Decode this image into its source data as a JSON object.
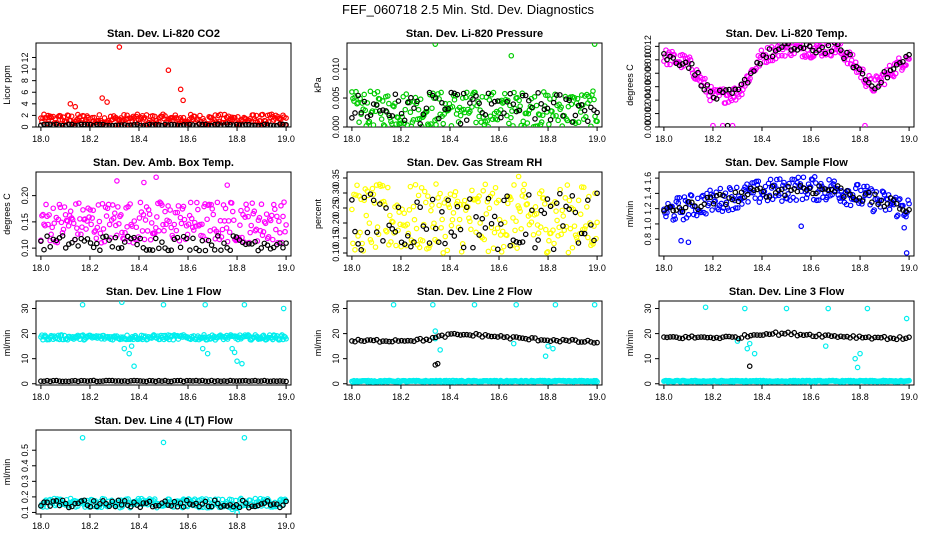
{
  "title": "FEF_060718  2.5 Min. Std. Dev. Diagnostics",
  "chart_data": [
    {
      "type": "scatter",
      "title": "Stan. Dev. Li-820 CO2",
      "ylabel": "Licor ppm",
      "xlim": [
        17.98,
        19.02
      ],
      "ylim": [
        0,
        14.5
      ],
      "xticks": [
        18.0,
        18.2,
        18.4,
        18.6,
        18.8,
        19.0
      ],
      "yticks": [
        0,
        2,
        4,
        6,
        8,
        10,
        12
      ],
      "series": [
        {
          "color": "#ff0000",
          "band": [
            0.3,
            2.2
          ],
          "outliers": [
            [
              18.32,
              13.8
            ],
            [
              18.52,
              9.8
            ],
            [
              18.25,
              5.0
            ],
            [
              18.57,
              6.5
            ],
            [
              18.14,
              3.5
            ],
            [
              18.58,
              4.6
            ],
            [
              18.12,
              4.0
            ],
            [
              18.27,
              4.3
            ]
          ]
        },
        {
          "color": "#000000",
          "band": [
            0.2,
            0.5
          ],
          "outliers": []
        }
      ]
    },
    {
      "type": "scatter",
      "title": "Stan. Dev. Li-820 Pressure",
      "ylabel": "kPa",
      "xlim": [
        17.98,
        19.02
      ],
      "ylim": [
        0,
        0.0145
      ],
      "xticks": [
        18.0,
        18.2,
        18.4,
        18.6,
        18.8,
        19.0
      ],
      "yticks": [
        0,
        0.005,
        0.01
      ],
      "ytick_labels": [
        "0.000",
        "0.005",
        "0.010"
      ],
      "series": [
        {
          "color": "#00cc00",
          "band": [
            0.0,
            0.0062
          ],
          "outliers": [
            [
              18.34,
              0.0143
            ],
            [
              18.65,
              0.0123
            ],
            [
              18.99,
              0.0143
            ]
          ]
        },
        {
          "color": "#000000",
          "band": [
            0.0005,
            0.006
          ],
          "outliers": []
        }
      ]
    },
    {
      "type": "scatter",
      "title": "Stan. Dev. Li-820 Temp.",
      "ylabel": "degrees C",
      "xlim": [
        17.98,
        19.02
      ],
      "ylim": [
        0,
        0.0125
      ],
      "xticks": [
        18.0,
        18.2,
        18.4,
        18.6,
        18.8,
        19.0
      ],
      "yticks": [
        0,
        0.002,
        0.004,
        0.006,
        0.008,
        0.01,
        0.012
      ],
      "ytick_labels": [
        "0.000",
        "0.002",
        "0.004",
        "0.006",
        "0.008",
        "0.010",
        "0.012"
      ],
      "series": [
        {
          "color": "#ff00ff",
          "curve": [
            [
              18.0,
              0.0105
            ],
            [
              18.1,
              0.0095
            ],
            [
              18.2,
              0.0045
            ],
            [
              18.3,
              0.005
            ],
            [
              18.4,
              0.0105
            ],
            [
              18.5,
              0.0118
            ],
            [
              18.6,
              0.0115
            ],
            [
              18.7,
              0.0118
            ],
            [
              18.75,
              0.0105
            ],
            [
              18.85,
              0.006
            ],
            [
              18.95,
              0.009
            ],
            [
              19.0,
              0.0105
            ]
          ],
          "spread": 0.0012,
          "outliers": [
            [
              18.2,
              0.0002
            ],
            [
              18.24,
              0.0002
            ],
            [
              18.28,
              0.0002
            ],
            [
              18.82,
              0.0002
            ]
          ]
        },
        {
          "color": "#000000",
          "curve": [
            [
              18.0,
              0.0105
            ],
            [
              18.1,
              0.0095
            ],
            [
              18.2,
              0.0045
            ],
            [
              18.3,
              0.005
            ],
            [
              18.4,
              0.0105
            ],
            [
              18.5,
              0.0118
            ],
            [
              18.6,
              0.0115
            ],
            [
              18.7,
              0.0118
            ],
            [
              18.75,
              0.0105
            ],
            [
              18.85,
              0.006
            ],
            [
              18.95,
              0.009
            ],
            [
              19.0,
              0.0105
            ]
          ],
          "spread": 0.0008,
          "outliers": [
            [
              18.26,
              0.0002
            ]
          ]
        }
      ]
    },
    {
      "type": "scatter",
      "title": "Stan. Dev. Amb. Box Temp.",
      "ylabel": "degrees C",
      "xlim": [
        17.98,
        19.02
      ],
      "ylim": [
        0.085,
        0.245
      ],
      "xticks": [
        18.0,
        18.2,
        18.4,
        18.6,
        18.8,
        19.0
      ],
      "yticks": [
        0.1,
        0.15,
        0.2
      ],
      "ytick_labels": [
        "0.10",
        "0.15",
        "0.20"
      ],
      "series": [
        {
          "color": "#ff00ff",
          "band": [
            0.11,
            0.19
          ],
          "outliers": [
            [
              18.31,
              0.228
            ],
            [
              18.47,
              0.235
            ],
            [
              18.76,
              0.22
            ],
            [
              18.42,
              0.225
            ]
          ]
        },
        {
          "color": "#000000",
          "band": [
            0.095,
            0.125
          ],
          "outliers": []
        }
      ]
    },
    {
      "type": "scatter",
      "title": "Stan. Dev. Gas Stream RH",
      "ylabel": "percent",
      "xlim": [
        17.98,
        19.02
      ],
      "ylim": [
        0.09,
        0.37
      ],
      "xticks": [
        18.0,
        18.2,
        18.4,
        18.6,
        18.8,
        19.0
      ],
      "yticks": [
        0.1,
        0.15,
        0.2,
        0.25,
        0.3,
        0.35
      ],
      "ytick_labels": [
        "0.10",
        "0.15",
        "0.20",
        "0.25",
        "0.30",
        "0.35"
      ],
      "series": [
        {
          "color": "#ffff00",
          "band": [
            0.1,
            0.33
          ],
          "outliers": [
            [
              18.68,
              0.355
            ]
          ]
        },
        {
          "color": "#000000",
          "band": [
            0.11,
            0.3
          ],
          "outliers": []
        }
      ]
    },
    {
      "type": "scatter",
      "title": "Stan. Dev. Sample Flow",
      "ylabel": "ml/min",
      "xlim": [
        17.98,
        19.02
      ],
      "ylim": [
        0.58,
        1.68
      ],
      "xticks": [
        18.0,
        18.2,
        18.4,
        18.6,
        18.8,
        19.0
      ],
      "yticks": [
        0.8,
        1.0,
        1.2,
        1.4,
        1.6
      ],
      "ytick_labels": [
        "0.8",
        "1.0",
        "1.2",
        "1.4",
        "1.6"
      ],
      "series": [
        {
          "color": "#0000ff",
          "curve": [
            [
              18.0,
              1.15
            ],
            [
              18.2,
              1.3
            ],
            [
              18.4,
              1.42
            ],
            [
              18.55,
              1.47
            ],
            [
              18.7,
              1.45
            ],
            [
              18.85,
              1.32
            ],
            [
              19.0,
              1.2
            ]
          ],
          "spread": 0.16,
          "outliers": [
            [
              18.07,
              0.78
            ],
            [
              18.1,
              0.76
            ],
            [
              18.56,
              0.97
            ],
            [
              18.99,
              0.62
            ],
            [
              18.98,
              0.95
            ]
          ]
        },
        {
          "color": "#000000",
          "curve": [
            [
              18.0,
              1.15
            ],
            [
              18.2,
              1.3
            ],
            [
              18.4,
              1.42
            ],
            [
              18.55,
              1.47
            ],
            [
              18.7,
              1.45
            ],
            [
              18.85,
              1.32
            ],
            [
              19.0,
              1.2
            ]
          ],
          "spread": 0.08,
          "outliers": []
        }
      ]
    },
    {
      "type": "scatter",
      "title": "Stan. Dev. Line 1 Flow",
      "ylabel": "ml/min",
      "xlim": [
        17.98,
        19.02
      ],
      "ylim": [
        -0.5,
        33
      ],
      "xticks": [
        18.0,
        18.2,
        18.4,
        18.6,
        18.8,
        19.0
      ],
      "yticks": [
        0,
        10,
        20,
        30
      ],
      "series": [
        {
          "color": "#00eeee",
          "band": [
            17.5,
            19.5
          ],
          "outliers": [
            [
              18.17,
              31.5
            ],
            [
              18.33,
              32.5
            ],
            [
              18.5,
              31.5
            ],
            [
              18.67,
              31.5
            ],
            [
              18.83,
              31.5
            ],
            [
              18.99,
              30.0
            ],
            [
              18.34,
              14.0
            ],
            [
              18.36,
              12.0
            ],
            [
              18.38,
              7.0
            ],
            [
              18.66,
              14.0
            ],
            [
              18.68,
              12.0
            ],
            [
              18.79,
              12.5
            ],
            [
              18.8,
              9.0
            ],
            [
              18.82,
              8.0
            ],
            [
              18.78,
              14.0
            ],
            [
              18.37,
              15.0
            ]
          ]
        },
        {
          "color": "#000000",
          "band": [
            0.9,
            1.3
          ],
          "outliers": []
        }
      ]
    },
    {
      "type": "scatter",
      "title": "Stan. Dev. Line 2 Flow",
      "ylabel": "ml/min",
      "xlim": [
        17.98,
        19.02
      ],
      "ylim": [
        -0.5,
        33
      ],
      "xticks": [
        18.0,
        18.2,
        18.4,
        18.6,
        18.8,
        19.0
      ],
      "yticks": [
        0,
        10,
        20,
        30
      ],
      "series": [
        {
          "color": "#00eeee",
          "band": [
            0.7,
            1.3
          ],
          "outliers": [
            [
              18.17,
              31.5
            ],
            [
              18.33,
              31.5
            ],
            [
              18.5,
              31.5
            ],
            [
              18.67,
              31.5
            ],
            [
              18.83,
              31.5
            ],
            [
              18.99,
              31.5
            ],
            [
              18.34,
              21.0
            ],
            [
              18.36,
              13.5
            ],
            [
              18.79,
              11.0
            ],
            [
              18.82,
              14.0
            ],
            [
              18.8,
              15.0
            ],
            [
              18.66,
              16.0
            ],
            [
              18.34,
              18.0
            ]
          ]
        },
        {
          "color": "#000000",
          "curve": [
            [
              18.0,
              17.0
            ],
            [
              18.3,
              17.5
            ],
            [
              18.4,
              19.5
            ],
            [
              18.5,
              19.5
            ],
            [
              18.7,
              18.0
            ],
            [
              19.0,
              16.5
            ]
          ],
          "spread": 0.6,
          "outliers": [
            [
              18.35,
              8.0
            ],
            [
              18.34,
              7.5
            ]
          ]
        }
      ]
    },
    {
      "type": "scatter",
      "title": "Stan. Dev. Line 3 Flow",
      "ylabel": "ml/min",
      "xlim": [
        17.98,
        19.02
      ],
      "ylim": [
        -0.5,
        33
      ],
      "xticks": [
        18.0,
        18.2,
        18.4,
        18.6,
        18.8,
        19.0
      ],
      "yticks": [
        0,
        10,
        20,
        30
      ],
      "series": [
        {
          "color": "#00eeee",
          "band": [
            0.7,
            1.3
          ],
          "outliers": [
            [
              18.17,
              30.5
            ],
            [
              18.33,
              30.0
            ],
            [
              18.5,
              30.0
            ],
            [
              18.67,
              30.0
            ],
            [
              18.83,
              30.0
            ],
            [
              18.99,
              26.0
            ],
            [
              18.35,
              16.0
            ],
            [
              18.37,
              12.0
            ],
            [
              18.34,
              14.0
            ],
            [
              18.78,
              10.0
            ],
            [
              18.8,
              12.0
            ],
            [
              18.79,
              6.5
            ],
            [
              18.66,
              15.0
            ],
            [
              18.3,
              17.0
            ]
          ]
        },
        {
          "color": "#000000",
          "curve": [
            [
              18.0,
              18.5
            ],
            [
              18.3,
              18.5
            ],
            [
              18.4,
              20.0
            ],
            [
              18.5,
              20.0
            ],
            [
              18.7,
              19.0
            ],
            [
              19.0,
              18.0
            ]
          ],
          "spread": 0.6,
          "outliers": [
            [
              18.35,
              7.0
            ]
          ]
        }
      ]
    },
    {
      "type": "scatter",
      "title": "Stan. Dev. Line 4 (LT) Flow",
      "ylabel": "ml/min",
      "xlim": [
        17.98,
        19.02
      ],
      "ylim": [
        0.09,
        0.63
      ],
      "xticks": [
        18.0,
        18.2,
        18.4,
        18.6,
        18.8,
        19.0
      ],
      "yticks": [
        0.1,
        0.2,
        0.3,
        0.4,
        0.5
      ],
      "ytick_labels": [
        "0.1",
        "0.2",
        "0.3",
        "0.4",
        "0.5"
      ],
      "series": [
        {
          "color": "#00eeee",
          "band": [
            0.13,
            0.19
          ],
          "outliers": [
            [
              18.17,
              0.58
            ],
            [
              18.5,
              0.55
            ],
            [
              18.83,
              0.58
            ],
            [
              18.8,
              0.1
            ],
            [
              18.78,
              0.12
            ]
          ]
        },
        {
          "color": "#000000",
          "band": [
            0.13,
            0.18
          ],
          "outliers": []
        }
      ]
    }
  ]
}
